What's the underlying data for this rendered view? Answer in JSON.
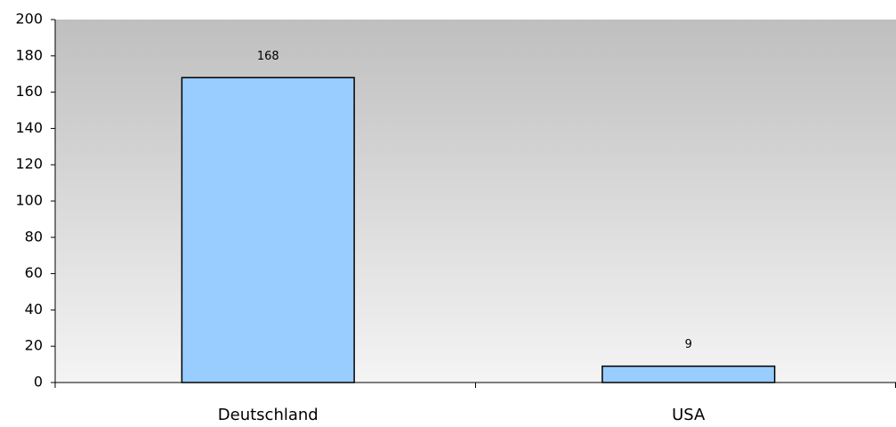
{
  "chart_data": {
    "type": "bar",
    "categories": [
      "Deutschland",
      "USA"
    ],
    "values": [
      168,
      9
    ],
    "color": "#99ccff",
    "ylim": [
      0,
      200
    ],
    "yticks": [
      0,
      20,
      40,
      60,
      80,
      100,
      120,
      140,
      160,
      180,
      200
    ],
    "grid": false
  }
}
